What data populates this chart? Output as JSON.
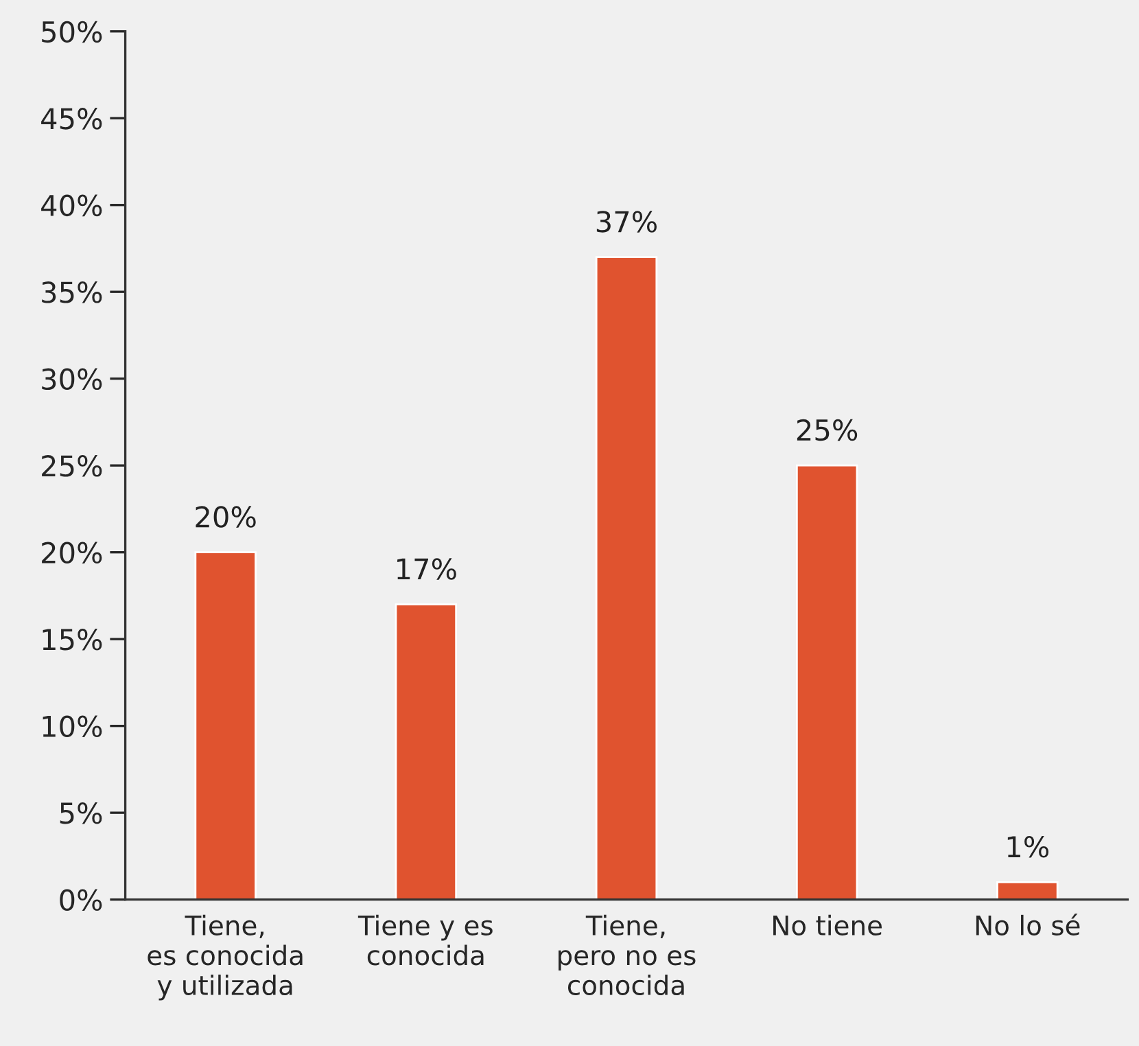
{
  "chart_data": {
    "type": "bar",
    "categories": [
      "Tiene,\nes conocida\ny utilizada",
      "Tiene y es\nconocida",
      "Tiene,\npero no es\nconocida",
      "No tiene",
      "No lo sé"
    ],
    "values": [
      20,
      17,
      37,
      25,
      1
    ],
    "color": "#e0532f",
    "value_labels": [
      "20%",
      "17%",
      "37%",
      "25%",
      "1%"
    ],
    "ylim": [
      0,
      50
    ],
    "yticks": [
      {
        "value": 0,
        "label": "0%"
      },
      {
        "value": 5,
        "label": "5%"
      },
      {
        "value": 10,
        "label": "10%"
      },
      {
        "value": 15,
        "label": "15%"
      },
      {
        "value": 20,
        "label": "20%"
      },
      {
        "value": 25,
        "label": "25%"
      },
      {
        "value": 30,
        "label": "30%"
      },
      {
        "value": 35,
        "label": "35%"
      },
      {
        "value": 40,
        "label": "40%"
      },
      {
        "value": 45,
        "label": "45%"
      },
      {
        "value": 50,
        "label": "50%"
      }
    ],
    "grid": false,
    "legend": false
  }
}
